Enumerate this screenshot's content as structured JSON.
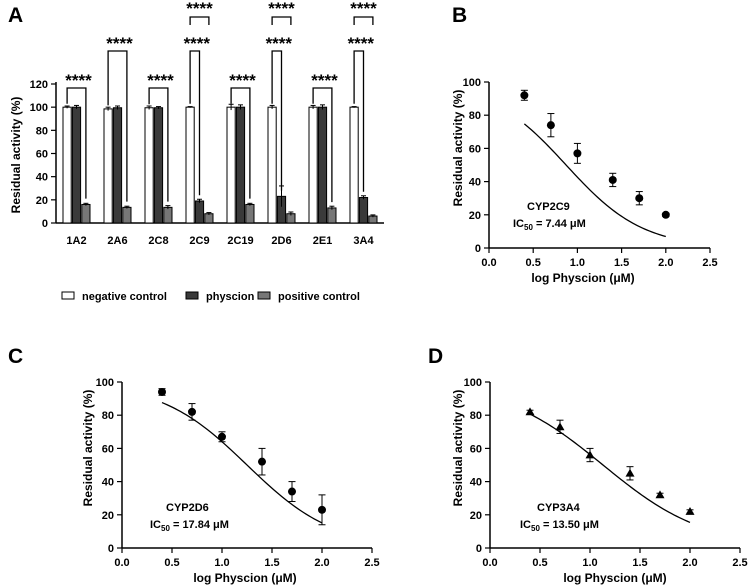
{
  "chart_data": [
    {
      "panel": "A",
      "type": "bar",
      "categories": [
        "1A2",
        "2A6",
        "2C8",
        "2C9",
        "2C19",
        "2D6",
        "2E1",
        "3A4"
      ],
      "ylabel": "Residual activity (%)",
      "ylim": [
        0,
        120
      ],
      "yticks": [
        0,
        20,
        40,
        60,
        80,
        100,
        120
      ],
      "series": [
        {
          "name": "negative control",
          "color": "#ffffff",
          "values": [
            100,
            98.5,
            99.5,
            100,
            100,
            100,
            100,
            100
          ],
          "errors": [
            1,
            1.5,
            1.5,
            0.5,
            2.5,
            1.5,
            1.5,
            0.5
          ]
        },
        {
          "name": "physcion",
          "color": "#3a3a3a",
          "values": [
            100,
            99.5,
            99.5,
            19,
            100,
            23,
            100,
            22
          ],
          "errors": [
            1.5,
            1.5,
            1,
            1.5,
            2,
            9,
            2,
            1.5
          ]
        },
        {
          "name": "positive control",
          "color": "#777777",
          "values": [
            16,
            13.5,
            13.5,
            8,
            16,
            8,
            13,
            6
          ],
          "errors": [
            1,
            1,
            1.5,
            1,
            1,
            1.5,
            1.5,
            1
          ]
        }
      ],
      "significance": [
        {
          "label": "****",
          "cat": 0,
          "from": "negative control",
          "to": "positive control"
        },
        {
          "label": "****",
          "cat": 1,
          "from": "negative control",
          "to": "positive control"
        },
        {
          "label": "****",
          "cat": 2,
          "from": "negative control",
          "to": "positive control"
        },
        {
          "label": "****",
          "cat": 3,
          "from": "negative control",
          "to": "physcion"
        },
        {
          "label": "****",
          "cat": 3,
          "from": "negative control",
          "to": "positive control"
        },
        {
          "label": "****",
          "cat": 4,
          "from": "negative control",
          "to": "positive control"
        },
        {
          "label": "****",
          "cat": 5,
          "from": "negative control",
          "to": "physcion"
        },
        {
          "label": "****",
          "cat": 5,
          "from": "negative control",
          "to": "positive control"
        },
        {
          "label": "****",
          "cat": 6,
          "from": "negative control",
          "to": "positive control"
        },
        {
          "label": "****",
          "cat": 7,
          "from": "negative control",
          "to": "physcion"
        },
        {
          "label": "****",
          "cat": 7,
          "from": "negative control",
          "to": "positive control"
        }
      ],
      "legend": [
        "negative control",
        "physcion",
        "positive control"
      ]
    },
    {
      "panel": "B",
      "type": "scatter",
      "marker": "circle",
      "xlabel": "log Physcion (μM)",
      "ylabel": "Residual activity (%)",
      "xlim": [
        0,
        2.5
      ],
      "ylim": [
        0,
        100
      ],
      "xticks": [
        "0.0",
        "0.5",
        "1.0",
        "1.5",
        "2.0",
        "2.5"
      ],
      "yticks": [
        "0",
        "20",
        "40",
        "60",
        "80",
        "100"
      ],
      "x": [
        0.4,
        0.7,
        1.0,
        1.4,
        1.7,
        2.0
      ],
      "y": [
        92,
        74,
        57,
        41,
        30,
        20
      ],
      "errors": [
        3,
        7,
        6,
        4,
        4,
        1
      ],
      "fit": {
        "ic50_log": 0.872,
        "hill": 1.0,
        "top": 100,
        "bottom": 0
      },
      "enzyme": "CYP2C9",
      "ic50_label": "IC",
      "ic50_sub": "50",
      "ic50_value": " = 7.44 μM"
    },
    {
      "panel": "C",
      "type": "scatter",
      "marker": "circle",
      "xlabel": "log Physcion (μM)",
      "ylabel": "Residual activity (%)",
      "xlim": [
        0,
        2.5
      ],
      "ylim": [
        0,
        100
      ],
      "xticks": [
        "0.0",
        "0.5",
        "1.0",
        "1.5",
        "2.0",
        "2.5"
      ],
      "yticks": [
        "0",
        "20",
        "40",
        "60",
        "80",
        "100"
      ],
      "x": [
        0.4,
        0.7,
        1.0,
        1.4,
        1.7,
        2.0
      ],
      "y": [
        94,
        82,
        67,
        52,
        34,
        23
      ],
      "errors": [
        2,
        5,
        3,
        8,
        6,
        9
      ],
      "fit": {
        "ic50_log": 1.25,
        "hill": 1.0,
        "top": 100,
        "bottom": 0
      },
      "enzyme": "CYP2D6",
      "ic50_label": "IC",
      "ic50_sub": "50",
      "ic50_value": " = 17.84 μM"
    },
    {
      "panel": "D",
      "type": "scatter",
      "marker": "triangle",
      "xlabel": "log Physcion (μM)",
      "ylabel": "Residual activity (%)",
      "xlim": [
        0,
        2.5
      ],
      "ylim": [
        0,
        100
      ],
      "xticks": [
        "0.0",
        "0.5",
        "1.0",
        "1.5",
        "2.0",
        "2.5"
      ],
      "yticks": [
        "0",
        "20",
        "40",
        "60",
        "80",
        "100"
      ],
      "x": [
        0.4,
        0.7,
        1.0,
        1.4,
        1.7,
        2.0
      ],
      "y": [
        82,
        73,
        56,
        45,
        32,
        22
      ],
      "errors": [
        1,
        4,
        4,
        4,
        1,
        1
      ],
      "fit": {
        "ic50_log": 1.13,
        "hill": 0.85,
        "top": 100,
        "bottom": 0
      },
      "enzyme": "CYP3A4",
      "ic50_label": "IC",
      "ic50_sub": "50",
      "ic50_value": " = 13.50 μM"
    }
  ]
}
